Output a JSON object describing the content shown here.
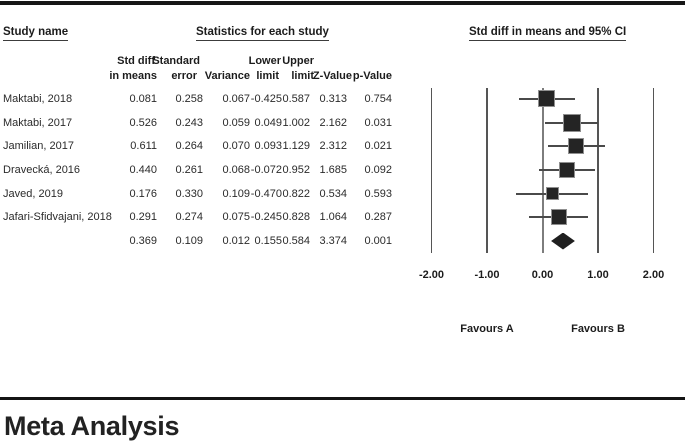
{
  "table": {
    "group_headers": {
      "study_name": "Study name",
      "statistics": "Statistics for each study",
      "forest": "Std diff in means and 95% CI"
    },
    "column_headers": {
      "std_diff_1": "Std diff",
      "std_diff_2": "in means",
      "se_1": "Standard",
      "se_2": "error",
      "variance": "Variance",
      "lower_1": "Lower",
      "lower_2": "limit",
      "upper_1": "Upper",
      "upper_2": "limit",
      "z": "Z-Value",
      "p": "p-Value"
    },
    "rows": [
      {
        "name": "Maktabi, 2018",
        "std_diff": "0.081",
        "se": "0.258",
        "variance": "0.067",
        "lower": "-0.425",
        "upper": "0.587",
        "z": "0.313",
        "p": "0.754"
      },
      {
        "name": "Maktabi, 2017",
        "std_diff": "0.526",
        "se": "0.243",
        "variance": "0.059",
        "lower": "0.049",
        "upper": "1.002",
        "z": "2.162",
        "p": "0.031"
      },
      {
        "name": "Jamilian, 2017",
        "std_diff": "0.611",
        "se": "0.264",
        "variance": "0.070",
        "lower": "0.093",
        "upper": "1.129",
        "z": "2.312",
        "p": "0.021"
      },
      {
        "name": "Dravecká, 2016",
        "std_diff": "0.440",
        "se": "0.261",
        "variance": "0.068",
        "lower": "-0.072",
        "upper": "0.952",
        "z": "1.685",
        "p": "0.092"
      },
      {
        "name": "Javed, 2019",
        "std_diff": "0.176",
        "se": "0.330",
        "variance": "0.109",
        "lower": "-0.470",
        "upper": "0.822",
        "z": "0.534",
        "p": "0.593"
      },
      {
        "name": "Jafari-Sfidvajani, 2018",
        "std_diff": "0.291",
        "se": "0.274",
        "variance": "0.075",
        "lower": "-0.245",
        "upper": "0.828",
        "z": "1.064",
        "p": "0.287"
      },
      {
        "name": "",
        "std_diff": "0.369",
        "se": "0.109",
        "variance": "0.012",
        "lower": "0.155",
        "upper": "0.584",
        "z": "3.374",
        "p": "0.001"
      }
    ]
  },
  "chart_data": {
    "type": "forest",
    "title": "Std diff in means and 95% CI",
    "x_axis": {
      "ticks": [
        -2,
        -1,
        0,
        1,
        2
      ],
      "tick_labels": [
        "-2.00",
        "-1.00",
        "0.00",
        "1.00",
        "2.00"
      ],
      "xlim": [
        -2,
        2
      ]
    },
    "footer": {
      "left_label": "Favours A",
      "right_label": "Favours B"
    },
    "studies": [
      {
        "name": "Maktabi, 2018",
        "mean": 0.081,
        "lower": -0.425,
        "upper": 0.587,
        "se": 0.258,
        "variance": 0.067,
        "z": 0.313,
        "p": 0.754
      },
      {
        "name": "Maktabi, 2017",
        "mean": 0.526,
        "lower": 0.049,
        "upper": 1.002,
        "se": 0.243,
        "variance": 0.059,
        "z": 2.162,
        "p": 0.031
      },
      {
        "name": "Jamilian, 2017",
        "mean": 0.611,
        "lower": 0.093,
        "upper": 1.129,
        "se": 0.264,
        "variance": 0.07,
        "z": 2.312,
        "p": 0.021
      },
      {
        "name": "Dravecká, 2016",
        "mean": 0.44,
        "lower": -0.072,
        "upper": 0.952,
        "se": 0.261,
        "variance": 0.068,
        "z": 1.685,
        "p": 0.092
      },
      {
        "name": "Javed, 2019",
        "mean": 0.176,
        "lower": -0.47,
        "upper": 0.822,
        "se": 0.33,
        "variance": 0.109,
        "z": 0.534,
        "p": 0.593
      },
      {
        "name": "Jafari-Sfidvajani, 2018",
        "mean": 0.291,
        "lower": -0.245,
        "upper": 0.828,
        "se": 0.274,
        "variance": 0.075,
        "z": 1.064,
        "p": 0.287
      }
    ],
    "summary": {
      "mean": 0.369,
      "lower": 0.155,
      "upper": 0.584,
      "se": 0.109,
      "variance": 0.012,
      "z": 3.374,
      "p": 0.001
    },
    "marker_color": "#242424",
    "ci_line_color": "#4a4a4a"
  },
  "footer": {
    "title": "Meta Analysis"
  }
}
